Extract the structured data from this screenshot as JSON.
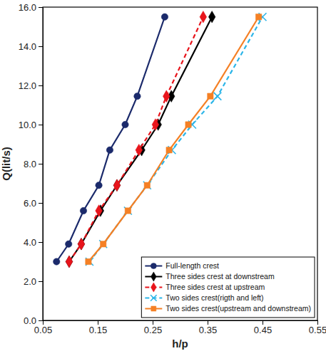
{
  "chart_data": {
    "type": "line",
    "xlabel": "h/p",
    "ylabel": "Q(lit/s)",
    "xlim": [
      0.05,
      0.55
    ],
    "xticks": [
      0.05,
      0.15,
      0.25,
      0.35,
      0.45,
      0.55
    ],
    "ylim": [
      0,
      16
    ],
    "yticks": [
      {
        "value": 0,
        "label": "0.0"
      },
      {
        "value": 2,
        "label": "2.0"
      },
      {
        "value": 4,
        "label": "4.0"
      },
      {
        "value": 6,
        "label": "6.0"
      },
      {
        "value": 8,
        "label": "8.0"
      },
      {
        "value": 10,
        "label": "10.0"
      },
      {
        "value": 12,
        "label": "12.0"
      },
      {
        "value": 14,
        "label": "14.0"
      },
      {
        "value": 16,
        "label": "16.0"
      }
    ],
    "grid": false,
    "legend": "lower right",
    "series": [
      {
        "name": "Full-length crest",
        "color": "#1b2a6b",
        "marker": "circle",
        "line_style": "solid",
        "x": [
          0.075,
          0.097,
          0.124,
          0.152,
          0.172,
          0.2,
          0.222,
          0.272
        ],
        "values": [
          3.0,
          3.9,
          5.6,
          6.9,
          8.7,
          10.0,
          11.45,
          15.5
        ]
      },
      {
        "name": "Three sides crest at downstream",
        "color": "#000000",
        "marker": "diamond",
        "line_style": "solid",
        "x": [
          0.098,
          0.12,
          0.155,
          0.185,
          0.23,
          0.26,
          0.284,
          0.358
        ],
        "values": [
          3.0,
          3.9,
          5.6,
          6.9,
          8.7,
          10.0,
          11.45,
          15.5
        ]
      },
      {
        "name": "Three sides crest at upstream",
        "color": "#e8141b",
        "marker": "diamond",
        "line_style": "dashed",
        "x": [
          0.098,
          0.12,
          0.152,
          0.185,
          0.225,
          0.255,
          0.275,
          0.342
        ],
        "values": [
          3.0,
          3.9,
          5.6,
          6.9,
          8.7,
          10.0,
          11.45,
          15.5
        ]
      },
      {
        "name": "Two sides crest(rigth and left)",
        "color": "#2bb5e8",
        "marker": "x",
        "line_style": "dashed",
        "x": [
          0.135,
          0.16,
          0.205,
          0.24,
          0.285,
          0.322,
          0.368,
          0.45
        ],
        "values": [
          3.0,
          3.9,
          5.6,
          6.9,
          8.7,
          10.0,
          11.45,
          15.5
        ]
      },
      {
        "name": "Two sides crest(upstream and downstream)",
        "color": "#f58025",
        "marker": "square",
        "line_style": "solid",
        "x": [
          0.133,
          0.16,
          0.205,
          0.24,
          0.28,
          0.315,
          0.355,
          0.443
        ],
        "values": [
          3.0,
          3.9,
          5.6,
          6.9,
          8.7,
          10.0,
          11.45,
          15.5
        ]
      }
    ]
  }
}
